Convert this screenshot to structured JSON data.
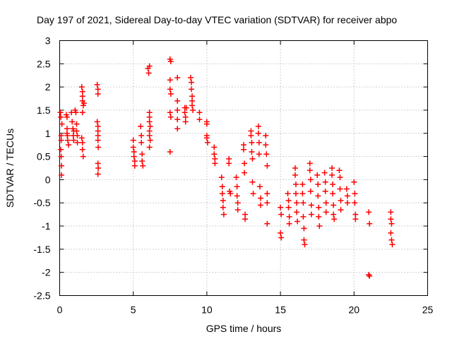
{
  "chart_data": {
    "type": "scatter",
    "title": "Day 197 of 2021, Sidereal Day-to-day VTEC variation (SDTVAR) for receiver abpo",
    "xlabel": "GPS time / hours",
    "ylabel": "SDTVAR / TECUs",
    "xlim": [
      0,
      25
    ],
    "ylim": [
      -2.5,
      3
    ],
    "xticks": [
      "0",
      "5",
      "10",
      "15",
      "20",
      "25"
    ],
    "yticks": [
      "-2.5",
      "-2",
      "-1.5",
      "-1",
      "-0.5",
      "0",
      "0.5",
      "1",
      "1.5",
      "2",
      "2.5",
      "3"
    ],
    "grid": true,
    "marker": "plus",
    "color": "#ff0000",
    "series": [
      {
        "name": "SDTVAR",
        "points": [
          [
            0.05,
            1.45
          ],
          [
            0.08,
            1.35
          ],
          [
            0.1,
            0.95
          ],
          [
            0.1,
            0.85
          ],
          [
            0.08,
            0.65
          ],
          [
            0.1,
            0.5
          ],
          [
            0.12,
            0.3
          ],
          [
            0.12,
            0.1
          ],
          [
            0.15,
            1.2
          ],
          [
            0.45,
            1.4
          ],
          [
            0.5,
            1.35
          ],
          [
            0.5,
            1.1
          ],
          [
            0.52,
            0.95
          ],
          [
            0.55,
            0.85
          ],
          [
            0.6,
            0.75
          ],
          [
            0.5,
            1.0
          ],
          [
            0.8,
            1.45
          ],
          [
            0.85,
            1.25
          ],
          [
            0.9,
            1.1
          ],
          [
            0.92,
            0.95
          ],
          [
            0.95,
            1.05
          ],
          [
            0.95,
            0.85
          ],
          [
            1.05,
            1.5
          ],
          [
            1.1,
            1.45
          ],
          [
            1.15,
            1.2
          ],
          [
            1.15,
            1.05
          ],
          [
            1.2,
            0.95
          ],
          [
            1.2,
            0.8
          ],
          [
            1.5,
            2.0
          ],
          [
            1.55,
            1.9
          ],
          [
            1.55,
            1.8
          ],
          [
            1.55,
            1.7
          ],
          [
            1.6,
            1.6
          ],
          [
            1.55,
            1.45
          ],
          [
            1.5,
            0.9
          ],
          [
            1.55,
            0.8
          ],
          [
            1.55,
            0.65
          ],
          [
            1.6,
            0.5
          ],
          [
            1.65,
            1.65
          ],
          [
            2.55,
            2.05
          ],
          [
            2.6,
            1.95
          ],
          [
            2.6,
            1.85
          ],
          [
            2.55,
            1.25
          ],
          [
            2.6,
            1.15
          ],
          [
            2.6,
            1.05
          ],
          [
            2.6,
            0.95
          ],
          [
            2.6,
            0.85
          ],
          [
            2.62,
            0.7
          ],
          [
            2.6,
            0.35
          ],
          [
            2.62,
            0.25
          ],
          [
            2.6,
            0.12
          ],
          [
            5.0,
            0.85
          ],
          [
            5.0,
            0.7
          ],
          [
            5.05,
            0.6
          ],
          [
            5.05,
            0.5
          ],
          [
            5.1,
            0.4
          ],
          [
            5.1,
            0.3
          ],
          [
            5.5,
            1.15
          ],
          [
            5.55,
            0.95
          ],
          [
            5.55,
            0.8
          ],
          [
            5.6,
            0.55
          ],
          [
            5.6,
            0.4
          ],
          [
            5.65,
            0.3
          ],
          [
            6.0,
            2.4
          ],
          [
            6.05,
            2.3
          ],
          [
            6.1,
            2.45
          ],
          [
            6.1,
            1.45
          ],
          [
            6.1,
            1.35
          ],
          [
            6.1,
            1.25
          ],
          [
            6.15,
            1.15
          ],
          [
            6.1,
            1.05
          ],
          [
            6.1,
            0.95
          ],
          [
            6.15,
            0.85
          ],
          [
            6.1,
            0.7
          ],
          [
            7.5,
            2.6
          ],
          [
            7.55,
            2.55
          ],
          [
            7.5,
            2.15
          ],
          [
            7.5,
            1.95
          ],
          [
            7.55,
            1.85
          ],
          [
            7.5,
            1.45
          ],
          [
            7.55,
            1.35
          ],
          [
            7.5,
            0.6
          ],
          [
            8.0,
            2.2
          ],
          [
            8.0,
            1.7
          ],
          [
            8.0,
            1.5
          ],
          [
            8.0,
            1.3
          ],
          [
            8.0,
            1.1
          ],
          [
            8.5,
            1.55
          ],
          [
            8.5,
            1.45
          ],
          [
            8.55,
            1.35
          ],
          [
            8.55,
            1.25
          ],
          [
            8.6,
            1.55
          ],
          [
            8.9,
            2.2
          ],
          [
            8.95,
            2.1
          ],
          [
            8.95,
            1.95
          ],
          [
            9.0,
            1.8
          ],
          [
            9.0,
            1.7
          ],
          [
            9.0,
            1.6
          ],
          [
            9.05,
            1.5
          ],
          [
            9.5,
            1.45
          ],
          [
            9.5,
            1.3
          ],
          [
            10.0,
            1.25
          ],
          [
            10.0,
            1.2
          ],
          [
            10.0,
            0.95
          ],
          [
            10.0,
            0.9
          ],
          [
            10.05,
            0.8
          ],
          [
            10.5,
            0.7
          ],
          [
            10.5,
            0.55
          ],
          [
            10.55,
            0.45
          ],
          [
            10.55,
            0.35
          ],
          [
            11.0,
            0.05
          ],
          [
            11.05,
            -0.15
          ],
          [
            11.05,
            -0.3
          ],
          [
            11.1,
            -0.45
          ],
          [
            11.1,
            -0.6
          ],
          [
            11.15,
            -0.75
          ],
          [
            11.5,
            0.45
          ],
          [
            11.5,
            0.35
          ],
          [
            11.55,
            -0.25
          ],
          [
            11.6,
            -0.3
          ],
          [
            12.0,
            0.05
          ],
          [
            12.05,
            -0.15
          ],
          [
            12.05,
            -0.35
          ],
          [
            12.1,
            -0.5
          ],
          [
            12.1,
            -0.65
          ],
          [
            12.5,
            0.75
          ],
          [
            12.5,
            0.65
          ],
          [
            12.55,
            0.35
          ],
          [
            12.55,
            0.15
          ],
          [
            12.6,
            -0.75
          ],
          [
            12.6,
            -0.85
          ],
          [
            13.0,
            1.05
          ],
          [
            13.0,
            0.95
          ],
          [
            13.05,
            0.8
          ],
          [
            13.05,
            0.6
          ],
          [
            13.1,
            0.45
          ],
          [
            13.1,
            -0.05
          ],
          [
            13.15,
            -0.3
          ],
          [
            13.5,
            1.15
          ],
          [
            13.5,
            1.0
          ],
          [
            13.55,
            0.8
          ],
          [
            13.55,
            0.55
          ],
          [
            13.6,
            -0.15
          ],
          [
            13.65,
            -0.4
          ],
          [
            13.65,
            -0.55
          ],
          [
            14.0,
            0.95
          ],
          [
            14.0,
            0.75
          ],
          [
            14.05,
            0.55
          ],
          [
            14.1,
            0.3
          ],
          [
            14.1,
            -0.3
          ],
          [
            14.1,
            -0.5
          ],
          [
            14.1,
            -0.95
          ],
          [
            15.0,
            -0.6
          ],
          [
            15.05,
            -0.75
          ],
          [
            15.0,
            -1.15
          ],
          [
            15.05,
            -1.25
          ],
          [
            15.5,
            -0.3
          ],
          [
            15.55,
            -0.45
          ],
          [
            15.55,
            -0.6
          ],
          [
            15.6,
            -0.8
          ],
          [
            15.6,
            -0.95
          ],
          [
            16.0,
            0.25
          ],
          [
            16.0,
            0.1
          ],
          [
            16.05,
            -0.1
          ],
          [
            16.05,
            -0.3
          ],
          [
            16.1,
            -0.5
          ],
          [
            16.1,
            -0.7
          ],
          [
            16.15,
            -0.9
          ],
          [
            16.5,
            -0.1
          ],
          [
            16.5,
            -0.3
          ],
          [
            16.55,
            -0.5
          ],
          [
            16.55,
            -0.8
          ],
          [
            16.6,
            -1.05
          ],
          [
            16.6,
            -1.3
          ],
          [
            16.65,
            -1.4
          ],
          [
            17.0,
            0.35
          ],
          [
            17.0,
            0.2
          ],
          [
            17.05,
            0.0
          ],
          [
            17.05,
            -0.25
          ],
          [
            17.1,
            -0.55
          ],
          [
            17.1,
            -0.75
          ],
          [
            17.5,
            0.1
          ],
          [
            17.55,
            -0.1
          ],
          [
            17.55,
            -0.35
          ],
          [
            17.6,
            -0.6
          ],
          [
            17.6,
            -0.8
          ],
          [
            17.65,
            -1.0
          ],
          [
            18.0,
            0.15
          ],
          [
            18.05,
            -0.05
          ],
          [
            18.05,
            -0.25
          ],
          [
            18.1,
            -0.5
          ],
          [
            18.1,
            -0.7
          ],
          [
            18.5,
            0.25
          ],
          [
            18.5,
            0.1
          ],
          [
            18.55,
            -0.1
          ],
          [
            18.55,
            -0.3
          ],
          [
            18.6,
            -0.55
          ],
          [
            18.6,
            -0.75
          ],
          [
            18.65,
            -0.85
          ],
          [
            19.0,
            0.2
          ],
          [
            19.05,
            0.05
          ],
          [
            19.05,
            -0.2
          ],
          [
            19.1,
            -0.45
          ],
          [
            19.1,
            -0.65
          ],
          [
            19.5,
            -0.2
          ],
          [
            19.55,
            -0.35
          ],
          [
            19.55,
            -0.5
          ],
          [
            20.0,
            -0.05
          ],
          [
            20.05,
            -0.3
          ],
          [
            20.05,
            -0.5
          ],
          [
            20.1,
            -0.75
          ],
          [
            20.1,
            -0.85
          ],
          [
            21.0,
            -0.7
          ],
          [
            21.05,
            -0.95
          ],
          [
            21.0,
            -2.05
          ],
          [
            21.05,
            -2.08
          ],
          [
            22.5,
            -0.7
          ],
          [
            22.5,
            -0.85
          ],
          [
            22.55,
            -0.95
          ],
          [
            22.5,
            -1.15
          ],
          [
            22.55,
            -1.3
          ],
          [
            22.6,
            -1.4
          ]
        ]
      }
    ]
  }
}
